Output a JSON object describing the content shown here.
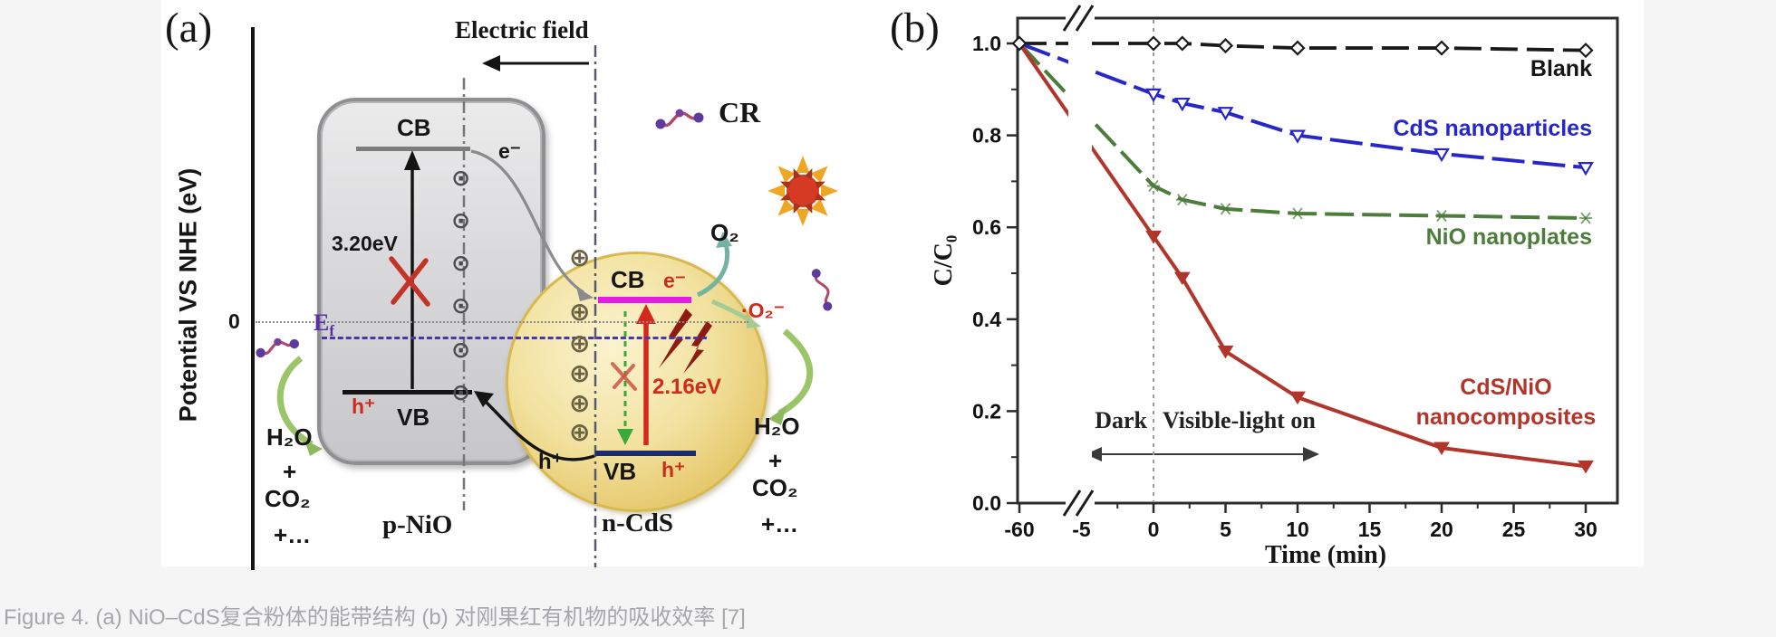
{
  "caption": "Figure 4. (a) NiO–CdS复合粉体的能带结构 (b) 对刚果红有机物的吸收效率 [7]",
  "panel_a": {
    "label": "(a)",
    "y_axis_label": "Potential VS NHE (eV)",
    "zero_tick": "0",
    "electric_field": "Electric field",
    "fermi_level_main": "E",
    "fermi_level_sub": "f",
    "nio": {
      "cb": "CB",
      "vb": "VB",
      "gap": "3.20eV",
      "hole": "h⁺",
      "electron": "e⁻",
      "name": "p-NiO"
    },
    "cds": {
      "cb": "CB",
      "vb": "VB",
      "gap": "2.16eV",
      "electron": "e⁻",
      "hole_inner": "h⁺",
      "hole_outer": "h⁺",
      "name": "n-CdS"
    },
    "cr": "CR",
    "o2": "O₂",
    "superoxide": "·O₂⁻",
    "left_products": [
      "H₂O",
      "+",
      "CO₂",
      "+…"
    ],
    "right_products": [
      "H₂O",
      "+",
      "CO₂",
      "+…"
    ]
  },
  "panel_b": {
    "label": "(b)",
    "dark_label": "Dark",
    "light_label": "Visible-light on"
  },
  "icons": {
    "electron_glyph": "⊙",
    "hole_glyph": "⊕"
  },
  "chart_data": {
    "type": "line",
    "title": "",
    "xlabel": "Time (min)",
    "ylabel": "C/C₀",
    "x_ticks": [
      -60,
      -5,
      0,
      5,
      10,
      15,
      20,
      25,
      30
    ],
    "x_tick_labels": [
      "-60",
      "-5",
      "0",
      "5",
      "10",
      "15",
      "20",
      "25",
      "30"
    ],
    "y_ticks": [
      0.0,
      0.2,
      0.4,
      0.6,
      0.8,
      1.0
    ],
    "y_tick_labels": [
      "0.0",
      "0.2",
      "0.4",
      "0.6",
      "0.8",
      "1.0"
    ],
    "ylim": [
      0,
      1.05
    ],
    "xlim_note": "axis break between -60 and -5 min",
    "grid": false,
    "legend_position": "inline-right",
    "light_on_at_x": 0,
    "series": [
      {
        "name": "Blank",
        "color": "#1a1a1a",
        "marker": "diamond-open",
        "x": [
          -60,
          0,
          2,
          5,
          10,
          20,
          30
        ],
        "y": [
          1.0,
          1.0,
          1.0,
          0.995,
          0.99,
          0.99,
          0.985
        ]
      },
      {
        "name": "CdS nanoparticles",
        "color": "#2626c9",
        "marker": "triangle-down-open",
        "x": [
          -60,
          0,
          2,
          5,
          10,
          20,
          30
        ],
        "y": [
          1.0,
          0.89,
          0.87,
          0.85,
          0.8,
          0.76,
          0.73
        ]
      },
      {
        "name": "NiO nanoplates",
        "color": "#4c7d3b",
        "marker": "star-open",
        "x": [
          -60,
          0,
          2,
          5,
          10,
          20,
          30
        ],
        "y": [
          1.0,
          0.69,
          0.66,
          0.64,
          0.63,
          0.625,
          0.62
        ]
      },
      {
        "name": "CdS/NiO nanocomposites",
        "color": "#b2352b",
        "marker": "triangle-down-filled",
        "x": [
          -60,
          0,
          2,
          5,
          10,
          20,
          30
        ],
        "y": [
          1.0,
          0.58,
          0.49,
          0.33,
          0.23,
          0.12,
          0.08
        ]
      }
    ]
  }
}
